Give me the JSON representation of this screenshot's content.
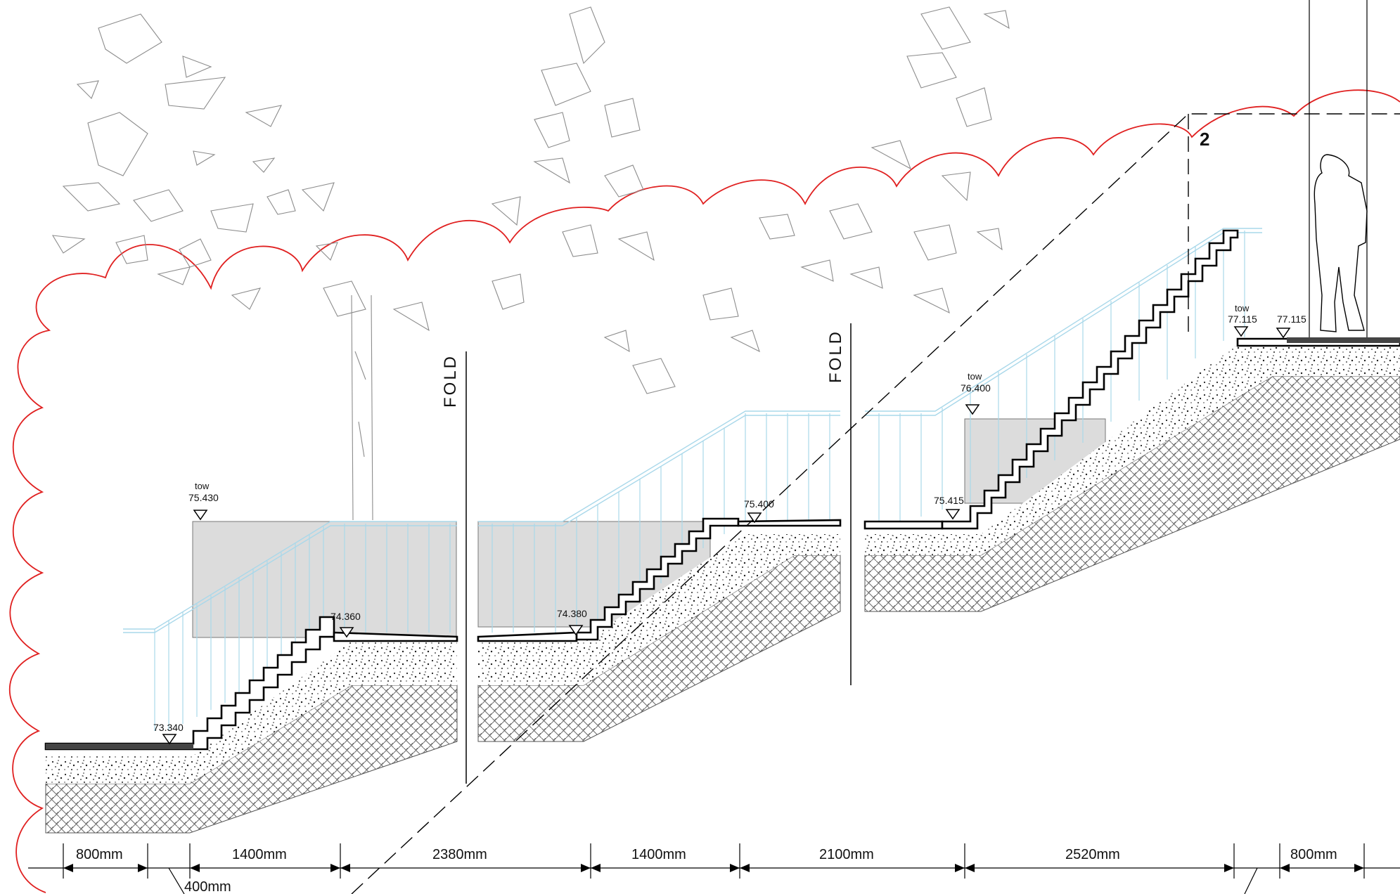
{
  "drawing": {
    "fold_labels": [
      "FOLD",
      "FOLD"
    ],
    "section_marker": "2",
    "elevations": [
      {
        "id": "e1",
        "tag": "",
        "value": "73.340"
      },
      {
        "id": "e2",
        "tag": "tow",
        "value": "75.430"
      },
      {
        "id": "e3",
        "tag": "",
        "value": "74.360"
      },
      {
        "id": "e4",
        "tag": "",
        "value": "74.380"
      },
      {
        "id": "e5",
        "tag": "",
        "value": "75.400"
      },
      {
        "id": "e6",
        "tag": "",
        "value": "75.415"
      },
      {
        "id": "e7",
        "tag": "tow",
        "value": "76.400"
      },
      {
        "id": "e8",
        "tag": "tow",
        "value": "77.115"
      },
      {
        "id": "e9",
        "tag": "",
        "value": "77.115"
      }
    ],
    "dimensions": [
      "800mm",
      "1400mm",
      "2380mm",
      "1400mm",
      "2100mm",
      "2520mm",
      "800mm",
      "400mm"
    ],
    "colors": {
      "revision_cloud": "#e02020",
      "railing": "#a9d8ea",
      "wall_fill": "#dcdcdc",
      "tree_lines": "#8c8c8c"
    }
  }
}
